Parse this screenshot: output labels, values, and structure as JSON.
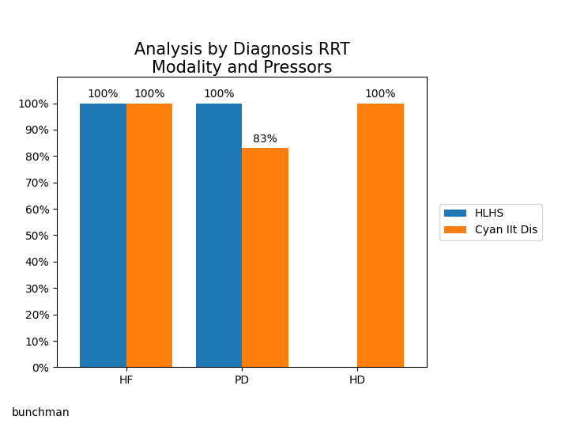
{
  "chart_data": {
    "type": "bar",
    "title": "Analysis by Diagnosis RRT\nModality and Pressors",
    "categories": [
      "HF",
      "PD",
      "HD"
    ],
    "series": [
      {
        "name": "HLHS",
        "values": [
          100,
          100,
          0
        ],
        "value_labels": [
          "100%",
          "100%",
          null
        ]
      },
      {
        "name": "Cyan IIt Dis",
        "values": [
          100,
          83,
          100
        ],
        "value_labels": [
          "100%",
          "83%",
          "100%"
        ]
      }
    ],
    "ylim": [
      0,
      110
    ],
    "yticks": [
      {
        "value": 0,
        "label": "0%"
      },
      {
        "value": 10,
        "label": "10%"
      },
      {
        "value": 20,
        "label": "20%"
      },
      {
        "value": 30,
        "label": "30%"
      },
      {
        "value": 40,
        "label": "40%"
      },
      {
        "value": 50,
        "label": "50%"
      },
      {
        "value": 60,
        "label": "60%"
      },
      {
        "value": 70,
        "label": "70%"
      },
      {
        "value": 80,
        "label": "80%"
      },
      {
        "value": 90,
        "label": "90%"
      },
      {
        "value": 100,
        "label": "100%"
      }
    ],
    "data_labels": true,
    "legend": "right",
    "grid": false,
    "footnote": "bunchman"
  }
}
